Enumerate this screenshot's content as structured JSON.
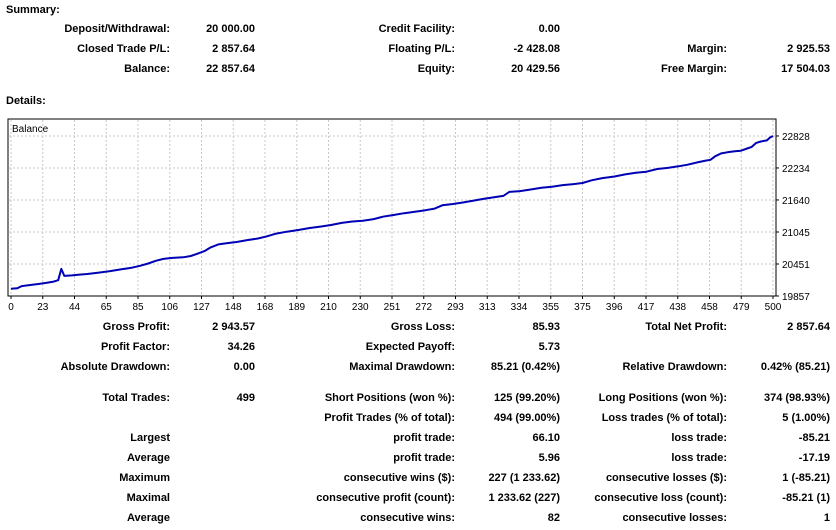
{
  "colors": {
    "line": "#0000B4",
    "grid": "#C8C8C8",
    "axis": "#000000",
    "text": "#000000",
    "background": "#FFFFFF"
  },
  "summary": {
    "heading": "Summary:",
    "rows": [
      [
        {
          "l": "Deposit/Withdrawal:",
          "v": "20 000.00"
        },
        {
          "l": "Credit Facility:",
          "v": "0.00"
        },
        {
          "l": "",
          "v": ""
        }
      ],
      [
        {
          "l": "Closed Trade P/L:",
          "v": "2 857.64"
        },
        {
          "l": "Floating P/L:",
          "v": "-2 428.08"
        },
        {
          "l": "Margin:",
          "v": "2 925.53"
        }
      ],
      [
        {
          "l": "Balance:",
          "v": "22 857.64"
        },
        {
          "l": "Equity:",
          "v": "20 429.56"
        },
        {
          "l": "Free Margin:",
          "v": "17 504.03"
        }
      ]
    ]
  },
  "details": {
    "heading": "Details:",
    "stats1": [
      [
        {
          "l": "Gross Profit:",
          "v": "2 943.57"
        },
        {
          "l": "Gross Loss:",
          "v": "85.93"
        },
        {
          "l": "Total Net Profit:",
          "v": "2 857.64"
        }
      ],
      [
        {
          "l": "Profit Factor:",
          "v": "34.26"
        },
        {
          "l": "Expected Payoff:",
          "v": "5.73"
        },
        {
          "l": "",
          "v": ""
        }
      ],
      [
        {
          "l": "Absolute Drawdown:",
          "v": "0.00"
        },
        {
          "l": "Maximal Drawdown:",
          "v": "85.21 (0.42%)"
        },
        {
          "l": "Relative Drawdown:",
          "v": "0.42% (85.21)"
        }
      ]
    ],
    "stats2": [
      [
        {
          "l": "Total Trades:",
          "v": "499"
        },
        {
          "l": "Short Positions (won %):",
          "v": "125 (99.20%)"
        },
        {
          "l": "Long Positions (won %):",
          "v": "374 (98.93%)"
        }
      ],
      [
        {
          "l": "",
          "v": ""
        },
        {
          "l": "Profit Trades (% of total):",
          "v": "494 (99.00%)"
        },
        {
          "l": "Loss trades (% of total):",
          "v": "5 (1.00%)"
        }
      ],
      [
        {
          "l": "Largest",
          "v": ""
        },
        {
          "l": "profit trade:",
          "v": "66.10"
        },
        {
          "l": "loss trade:",
          "v": "-85.21"
        }
      ],
      [
        {
          "l": "Average",
          "v": ""
        },
        {
          "l": "profit trade:",
          "v": "5.96"
        },
        {
          "l": "loss trade:",
          "v": "-17.19"
        }
      ],
      [
        {
          "l": "Maximum",
          "v": ""
        },
        {
          "l": "consecutive wins ($):",
          "v": "227 (1 233.62)"
        },
        {
          "l": "consecutive losses ($):",
          "v": "1 (-85.21)"
        }
      ],
      [
        {
          "l": "Maximal",
          "v": ""
        },
        {
          "l": "consecutive profit (count):",
          "v": "1 233.62 (227)"
        },
        {
          "l": "consecutive loss (count):",
          "v": "-85.21 (1)"
        }
      ],
      [
        {
          "l": "Average",
          "v": ""
        },
        {
          "l": "consecutive wins:",
          "v": "82"
        },
        {
          "l": "consecutive losses:",
          "v": "1"
        }
      ]
    ]
  },
  "chart_data": {
    "type": "line",
    "title": "Balance",
    "legend_position": "top-left-inside",
    "grid": true,
    "x_ticks": [
      0,
      23,
      44,
      65,
      85,
      106,
      127,
      148,
      168,
      189,
      210,
      230,
      251,
      272,
      293,
      313,
      334,
      355,
      375,
      396,
      417,
      438,
      458,
      479,
      500
    ],
    "y_ticks": [
      22828,
      22234,
      21640,
      21045,
      20451,
      19857
    ],
    "ylim": [
      19857,
      23143
    ],
    "xlabel": "",
    "ylabel": "",
    "points": [
      [
        0,
        19990
      ],
      [
        4,
        20000
      ],
      [
        7,
        20040
      ],
      [
        12,
        20060
      ],
      [
        18,
        20080
      ],
      [
        23,
        20100
      ],
      [
        28,
        20125
      ],
      [
        31,
        20150
      ],
      [
        33,
        20360
      ],
      [
        35,
        20230
      ],
      [
        40,
        20240
      ],
      [
        44,
        20250
      ],
      [
        50,
        20265
      ],
      [
        57,
        20290
      ],
      [
        65,
        20320
      ],
      [
        72,
        20350
      ],
      [
        79,
        20380
      ],
      [
        85,
        20420
      ],
      [
        90,
        20460
      ],
      [
        95,
        20510
      ],
      [
        100,
        20545
      ],
      [
        106,
        20565
      ],
      [
        113,
        20575
      ],
      [
        118,
        20600
      ],
      [
        123,
        20650
      ],
      [
        127,
        20690
      ],
      [
        131,
        20760
      ],
      [
        136,
        20815
      ],
      [
        142,
        20840
      ],
      [
        148,
        20860
      ],
      [
        155,
        20895
      ],
      [
        162,
        20925
      ],
      [
        168,
        20965
      ],
      [
        174,
        21015
      ],
      [
        181,
        21050
      ],
      [
        189,
        21085
      ],
      [
        196,
        21120
      ],
      [
        203,
        21145
      ],
      [
        210,
        21175
      ],
      [
        217,
        21215
      ],
      [
        224,
        21240
      ],
      [
        231,
        21255
      ],
      [
        238,
        21285
      ],
      [
        244,
        21330
      ],
      [
        251,
        21360
      ],
      [
        258,
        21395
      ],
      [
        265,
        21420
      ],
      [
        272,
        21450
      ],
      [
        278,
        21480
      ],
      [
        283,
        21540
      ],
      [
        290,
        21565
      ],
      [
        297,
        21595
      ],
      [
        304,
        21630
      ],
      [
        310,
        21660
      ],
      [
        317,
        21690
      ],
      [
        323,
        21715
      ],
      [
        327,
        21790
      ],
      [
        334,
        21805
      ],
      [
        341,
        21835
      ],
      [
        348,
        21865
      ],
      [
        355,
        21885
      ],
      [
        362,
        21915
      ],
      [
        369,
        21935
      ],
      [
        375,
        21955
      ],
      [
        381,
        22005
      ],
      [
        388,
        22045
      ],
      [
        396,
        22075
      ],
      [
        403,
        22115
      ],
      [
        410,
        22145
      ],
      [
        417,
        22165
      ],
      [
        424,
        22215
      ],
      [
        431,
        22235
      ],
      [
        438,
        22265
      ],
      [
        444,
        22295
      ],
      [
        450,
        22335
      ],
      [
        455,
        22365
      ],
      [
        459,
        22385
      ],
      [
        462,
        22450
      ],
      [
        466,
        22505
      ],
      [
        470,
        22525
      ],
      [
        475,
        22545
      ],
      [
        479,
        22555
      ],
      [
        483,
        22595
      ],
      [
        486,
        22625
      ],
      [
        489,
        22700
      ],
      [
        492,
        22725
      ],
      [
        496,
        22745
      ],
      [
        498,
        22800
      ],
      [
        500,
        22828
      ]
    ]
  }
}
